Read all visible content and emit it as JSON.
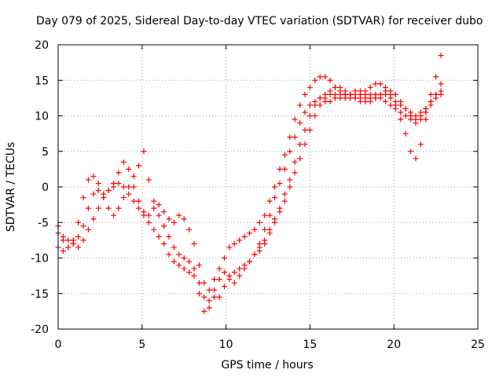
{
  "chart_data": {
    "type": "scatter",
    "title": "Day 079 of 2025, Sidereal Day-to-day VTEC variation (SDTVAR) for receiver dubo",
    "xlabel": "GPS time / hours",
    "ylabel": "SDTVAR / TECUs",
    "xlim": [
      0,
      25
    ],
    "ylim": [
      -20,
      20
    ],
    "xticks": [
      "0",
      "5",
      "10",
      "15",
      "20",
      "25"
    ],
    "yticks": [
      "-20",
      "-15",
      "-10",
      "-5",
      "0",
      "5",
      "10",
      "15",
      "20"
    ],
    "grid": true,
    "marker": "plus",
    "color": "#ff0000",
    "series": [
      {
        "x": [
          0.0,
          0.3,
          0.6,
          0.9,
          1.2,
          1.5,
          1.8,
          2.1,
          2.4,
          2.7,
          3.0,
          3.3,
          3.6,
          3.9,
          4.2,
          4.5,
          4.8,
          5.1,
          5.4,
          5.7,
          6.0,
          6.3,
          6.6,
          6.9,
          7.2,
          7.5,
          7.8,
          8.1,
          8.4,
          8.7,
          9.0,
          9.3,
          9.6,
          9.9,
          10.2,
          10.5,
          10.8,
          11.1,
          11.4,
          11.7,
          12.0,
          12.3,
          12.6,
          12.9,
          13.2,
          13.5,
          13.8,
          14.1,
          14.4,
          14.7,
          15.0,
          15.3,
          15.6,
          15.9,
          16.2,
          16.5,
          16.8,
          17.1,
          17.4,
          17.7,
          18.0,
          18.3,
          18.6,
          18.9,
          19.2,
          19.5,
          19.8,
          20.1,
          20.4,
          20.7,
          21.0,
          21.3,
          21.6,
          21.9,
          22.2,
          22.5,
          22.8
        ],
        "y": [
          -5.5,
          -7.5,
          -8.5,
          -7.5,
          -5.0,
          -1.5,
          1.0,
          1.5,
          0.5,
          -1.0,
          -0.5,
          0.5,
          2.0,
          3.5,
          2.5,
          0.0,
          -2.0,
          -3.5,
          -4.0,
          -3.0,
          -2.5,
          -3.5,
          -4.5,
          -5.0,
          -4.0,
          -4.5,
          -6.0,
          -8.0,
          -11.0,
          -13.5,
          -14.5,
          -13.0,
          -11.5,
          -10.0,
          -8.5,
          -8.0,
          -7.5,
          -7.0,
          -6.5,
          -6.0,
          -5.0,
          -4.0,
          -2.0,
          0.0,
          2.5,
          4.5,
          7.0,
          9.5,
          11.5,
          13.0,
          14.0,
          15.0,
          15.5,
          15.5,
          15.0,
          14.0,
          13.5,
          13.0,
          13.0,
          13.0,
          13.0,
          13.5,
          14.0,
          14.5,
          14.5,
          14.0,
          13.0,
          11.5,
          9.5,
          7.5,
          5.0,
          4.0,
          6.0,
          9.5,
          13.0,
          15.5,
          18.5
        ]
      },
      {
        "x": [
          0.0,
          0.3,
          0.6,
          0.9,
          1.2,
          1.5,
          1.8,
          2.1,
          2.4,
          2.7,
          3.0,
          3.3,
          3.6,
          3.9,
          4.2,
          4.5,
          4.8,
          5.1,
          5.4,
          5.7,
          6.0,
          6.3,
          6.6,
          6.9,
          7.2,
          7.5,
          7.8,
          8.1,
          8.4,
          8.7,
          9.0,
          9.3,
          9.6,
          9.9,
          10.2,
          10.5,
          10.8,
          11.1,
          11.4,
          11.7,
          12.0,
          12.3,
          12.6,
          12.9,
          13.2,
          13.5,
          13.8,
          14.1,
          14.4,
          14.7,
          15.0,
          15.3,
          15.6,
          15.9,
          16.2,
          16.5,
          16.8,
          17.1,
          17.4,
          17.7,
          18.0,
          18.3,
          18.6,
          18.9,
          19.2,
          19.5,
          19.8,
          20.1,
          20.4,
          20.7,
          21.0,
          21.3,
          21.6,
          21.9,
          22.2,
          22.5,
          22.8
        ],
        "y": [
          -8.5,
          -9.0,
          -8.5,
          -8.0,
          -7.0,
          -5.5,
          -3.0,
          -1.0,
          -0.5,
          -1.5,
          -3.0,
          -4.0,
          -3.0,
          -1.5,
          0.0,
          1.5,
          3.0,
          5.0,
          1.0,
          -2.0,
          -4.0,
          -5.5,
          -7.0,
          -8.5,
          -9.5,
          -10.0,
          -10.5,
          -11.5,
          -15.0,
          -17.5,
          -16.0,
          -14.5,
          -15.5,
          -14.0,
          -12.5,
          -12.0,
          -11.5,
          -11.0,
          -10.5,
          -9.5,
          -8.0,
          -6.0,
          -4.0,
          -1.5,
          0.5,
          2.5,
          5.0,
          7.0,
          9.0,
          10.5,
          11.5,
          12.0,
          12.5,
          12.0,
          12.0,
          12.5,
          13.0,
          13.0,
          12.5,
          12.5,
          12.5,
          12.0,
          12.0,
          12.5,
          13.0,
          13.0,
          12.5,
          12.0,
          11.5,
          11.0,
          10.5,
          10.0,
          10.5,
          11.0,
          12.0,
          13.0,
          14.5
        ]
      },
      {
        "x": [
          0.0,
          0.3,
          0.6,
          0.9,
          1.2,
          1.5,
          1.8,
          2.1,
          2.4,
          2.7,
          3.0,
          3.3,
          3.6,
          3.9,
          4.2,
          4.5,
          4.8,
          5.1,
          5.4,
          5.7,
          6.0,
          6.3,
          6.6,
          6.9,
          7.2,
          7.5,
          7.8,
          8.1,
          8.4,
          8.7,
          9.0,
          9.3,
          9.6,
          9.9,
          10.2,
          10.5,
          10.8,
          11.1,
          11.4,
          11.7,
          12.0,
          12.3,
          12.6,
          12.9,
          13.2,
          13.5,
          13.8,
          14.1,
          14.4,
          14.7,
          15.0,
          15.3,
          15.6,
          15.9,
          16.2,
          16.5,
          16.8,
          17.1,
          17.4,
          17.7,
          18.0,
          18.3,
          18.6,
          18.9,
          19.2,
          19.5,
          19.8,
          20.1,
          20.4,
          20.7,
          21.0,
          21.3,
          21.6,
          21.9,
          22.2,
          22.5,
          22.8
        ],
        "y": [
          -6.5,
          -7.0,
          -7.5,
          -8.0,
          -8.5,
          -7.5,
          -6.0,
          -4.5,
          -3.0,
          -1.5,
          -0.5,
          0.0,
          0.5,
          0.0,
          -1.0,
          -2.0,
          -3.0,
          -4.0,
          -5.0,
          -6.0,
          -7.0,
          -8.0,
          -9.5,
          -10.5,
          -11.0,
          -11.5,
          -12.0,
          -12.5,
          -13.5,
          -15.5,
          -17.0,
          -15.5,
          -13.0,
          -12.0,
          -13.0,
          -13.5,
          -12.5,
          -11.5,
          -10.5,
          -9.5,
          -8.5,
          -7.5,
          -6.0,
          -4.5,
          -3.0,
          -1.0,
          1.0,
          3.5,
          6.0,
          8.0,
          10.0,
          11.5,
          12.5,
          13.0,
          13.5,
          14.0,
          14.0,
          13.5,
          13.0,
          12.5,
          12.0,
          12.5,
          13.0,
          13.0,
          12.5,
          12.0,
          11.5,
          11.0,
          10.5,
          10.0,
          9.5,
          9.0,
          9.5,
          10.5,
          11.5,
          12.5,
          13.5
        ]
      },
      {
        "x": [
          12.0,
          12.3,
          12.6,
          12.9,
          13.2,
          13.5,
          13.8,
          14.1,
          14.4,
          14.7,
          15.0,
          15.3,
          15.6,
          15.9,
          16.2,
          16.5,
          16.8,
          17.1,
          17.4,
          17.7,
          18.0,
          18.3,
          18.6,
          18.9,
          19.2,
          19.5,
          19.8,
          20.1,
          20.4,
          20.7,
          21.0,
          21.3,
          21.6,
          21.9,
          22.2,
          22.5,
          22.8
        ],
        "y": [
          -9.0,
          -8.0,
          -6.5,
          -5.0,
          -3.5,
          -2.0,
          0.0,
          2.0,
          4.0,
          6.0,
          8.0,
          10.0,
          11.5,
          12.5,
          13.0,
          13.0,
          12.5,
          12.5,
          13.0,
          13.5,
          13.5,
          13.0,
          12.5,
          12.5,
          13.0,
          13.5,
          13.5,
          13.0,
          12.0,
          11.0,
          10.0,
          9.5,
          10.0,
          11.0,
          12.0,
          13.0,
          13.0
        ]
      }
    ]
  }
}
